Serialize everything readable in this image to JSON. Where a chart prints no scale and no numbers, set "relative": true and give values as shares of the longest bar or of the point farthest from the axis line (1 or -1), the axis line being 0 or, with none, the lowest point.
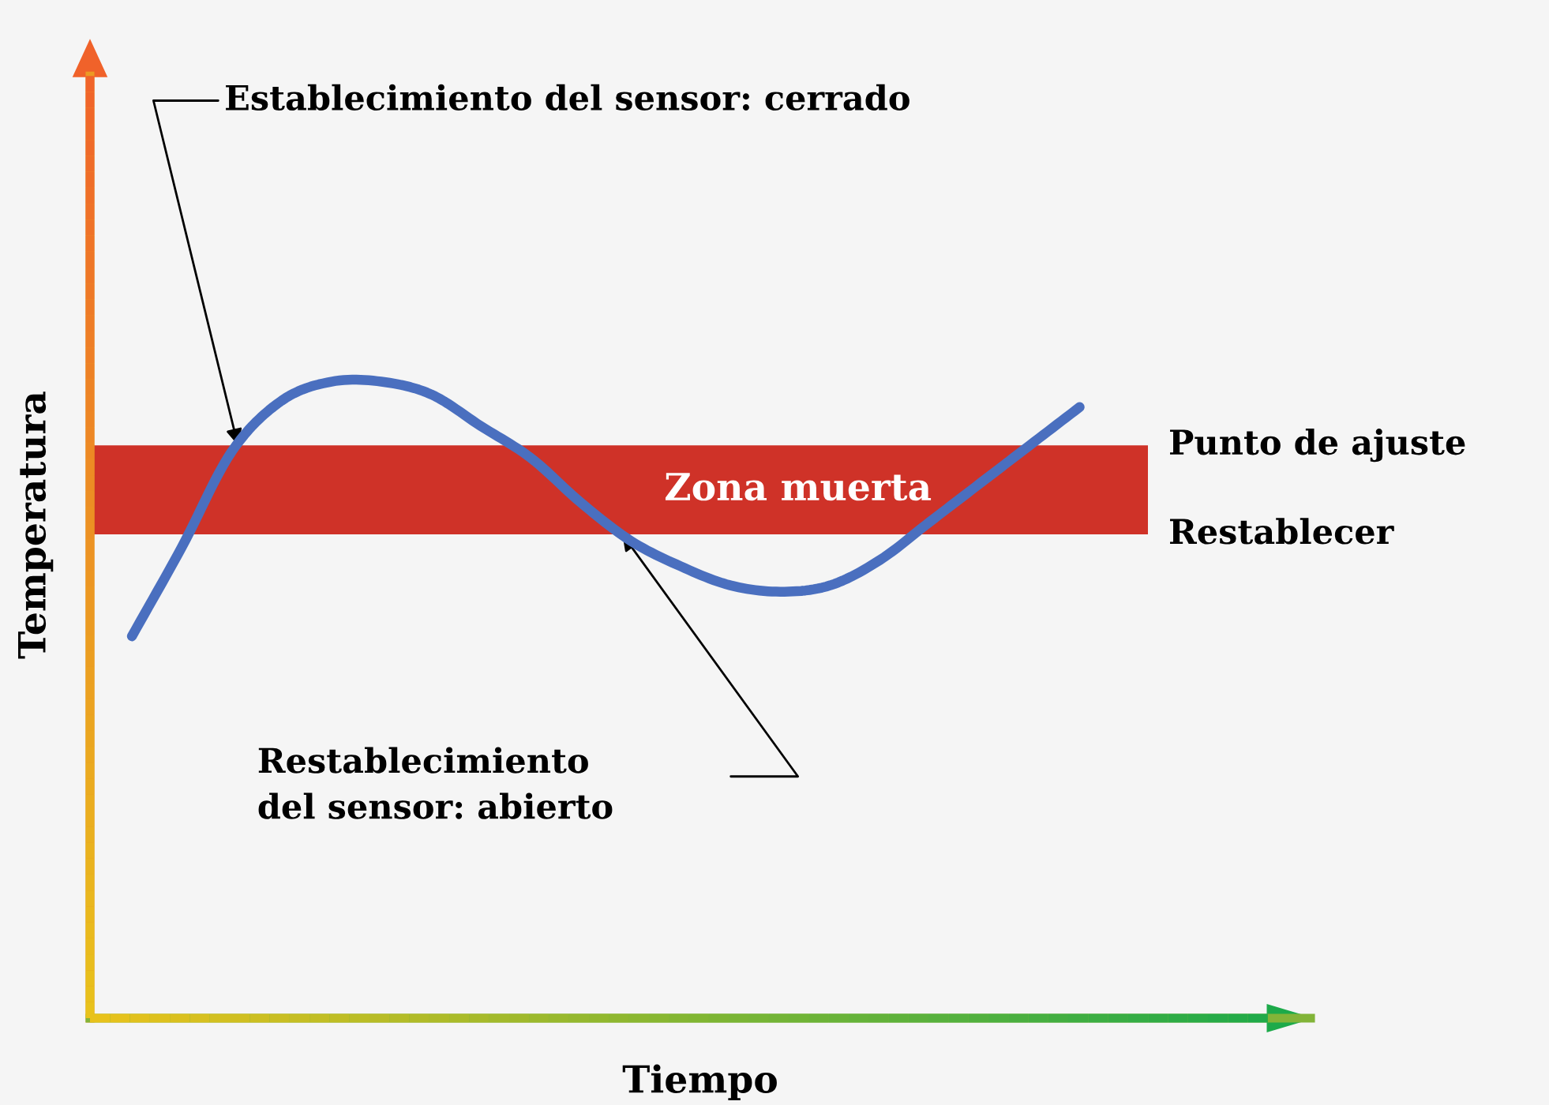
{
  "chart_data": {
    "type": "line",
    "relative": true,
    "xlabel": "Tiempo",
    "ylabel": "Temperatura",
    "categories": [
      null,
      null,
      null,
      null,
      null,
      null,
      null,
      null,
      null,
      null,
      null,
      null,
      null,
      null,
      null,
      null,
      null,
      null,
      null,
      null
    ],
    "series": [
      {
        "color": "#4a6fbf",
        "values": [
          0.6,
          0.74,
          0.89,
          0.97,
          1,
          1,
          0.98,
          0.93,
          0.88,
          0.81,
          0.75,
          0.71,
          0.68,
          0.67,
          0.68,
          0.72,
          0.78,
          0.84,
          0.9,
          0.96
        ]
      }
    ],
    "bands": [
      {
        "axis": "y",
        "from": 0.76,
        "to": 0.9,
        "label": "Zona muerta",
        "color": "#cf3228"
      }
    ],
    "annotations": [
      "Establecimiento del sensor: cerrado",
      "Restablecimiento\ndel sensor: abierto",
      "Punto de ajuste",
      "Restablecer"
    ],
    "marker": "none",
    "line_style": "solid"
  }
}
